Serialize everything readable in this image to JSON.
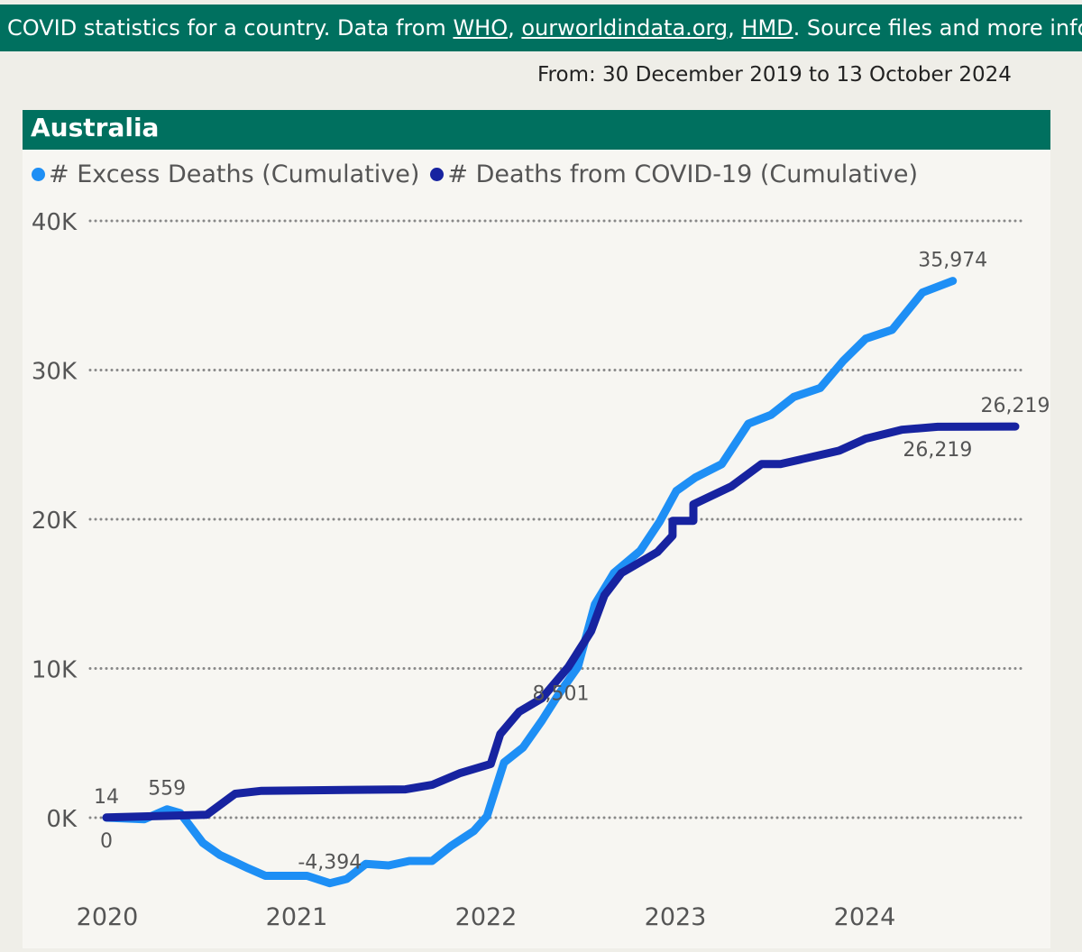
{
  "banner": {
    "prefix": "COVID statistics for a country. Data from ",
    "links": [
      "WHO",
      "ourworldindata.org",
      "HMD"
    ],
    "sep1": ", ",
    "sep2": ", ",
    "suffix": ". Source files and more info on"
  },
  "date_range": "From: 30 December 2019 to 13 October 2024",
  "colors": {
    "header": "#00705f",
    "excess": "#1e8ff5",
    "covid": "#1723a0",
    "grid": "#888888"
  },
  "chart_data": {
    "type": "line",
    "title": "Australia",
    "xlabel": "",
    "ylabel": "",
    "xlim": [
      2020,
      2024.8
    ],
    "ylim": [
      -5000,
      40000
    ],
    "grid": true,
    "legend_position": "top-left",
    "x_ticks": [
      2020,
      2021,
      2022,
      2023,
      2024
    ],
    "x_tick_labels": [
      "2020",
      "2021",
      "2022",
      "2023",
      "2024"
    ],
    "y_ticks": [
      0,
      10000,
      20000,
      30000,
      40000
    ],
    "y_tick_labels": [
      "0K",
      "10K",
      "20K",
      "30K",
      "40K"
    ],
    "series": [
      {
        "name": "# Excess Deaths (Cumulative)",
        "color": "#1e8ff5",
        "x": [
          2020.0,
          2020.2,
          2020.32,
          2020.39,
          2020.51,
          2020.6,
          2020.75,
          2020.84,
          2021.06,
          2021.18,
          2021.27,
          2021.37,
          2021.49,
          2021.6,
          2021.72,
          2021.82,
          2021.94,
          2022.01,
          2022.1,
          2022.2,
          2022.3,
          2022.39,
          2022.49,
          2022.58,
          2022.68,
          2022.82,
          2022.92,
          2023.01,
          2023.11,
          2023.25,
          2023.39,
          2023.51,
          2023.63,
          2023.77,
          2023.89,
          2024.01,
          2024.15,
          2024.31,
          2024.47
        ],
        "y": [
          0,
          -100,
          559,
          300,
          -1700,
          -2500,
          -3400,
          -3900,
          -3900,
          -4394,
          -4100,
          -3100,
          -3200,
          -2900,
          -2900,
          -1900,
          -900,
          100,
          3700,
          4700,
          6500,
          8300,
          10100,
          14300,
          16400,
          17900,
          19800,
          21900,
          22800,
          23700,
          26400,
          27000,
          28200,
          28800,
          30600,
          32100,
          32700,
          35200,
          35974
        ]
      },
      {
        "name": "# Deaths from COVID-19 (Cumulative)",
        "color": "#1723a0",
        "x": [
          2020.0,
          2020.53,
          2020.68,
          2020.82,
          2021.58,
          2021.72,
          2021.87,
          2022.03,
          2022.08,
          2022.18,
          2022.3,
          2022.44,
          2022.56,
          2022.63,
          2022.72,
          2022.91,
          2022.99,
          2022.99,
          2023.1,
          2023.1,
          2023.3,
          2023.46,
          2023.56,
          2023.87,
          2024.01,
          2024.2,
          2024.39,
          2024.8
        ],
        "y": [
          14,
          200,
          1600,
          1800,
          1900,
          2200,
          3000,
          3600,
          5600,
          7100,
          8000,
          10100,
          12500,
          14900,
          16400,
          17800,
          18900,
          19900,
          19900,
          21000,
          22200,
          23700,
          23700,
          24600,
          25400,
          26000,
          26200,
          26219
        ]
      }
    ],
    "annotations": [
      {
        "text": "14",
        "x": 2020.0,
        "y": 14,
        "pos": "above"
      },
      {
        "text": "0",
        "x": 2020.0,
        "y": 0,
        "pos": "below"
      },
      {
        "text": "559",
        "x": 2020.32,
        "y": 559,
        "pos": "above"
      },
      {
        "text": "-4,394",
        "x": 2021.18,
        "y": -4394,
        "pos": "above"
      },
      {
        "text": "8,501",
        "x": 2022.4,
        "y": 8501,
        "pos": "on"
      },
      {
        "text": "35,974",
        "x": 2024.47,
        "y": 35974,
        "pos": "above"
      },
      {
        "text": "26,219",
        "x": 2024.8,
        "y": 26219,
        "pos": "above"
      },
      {
        "text": "26,219",
        "x": 2024.39,
        "y": 26219,
        "pos": "below"
      }
    ]
  }
}
